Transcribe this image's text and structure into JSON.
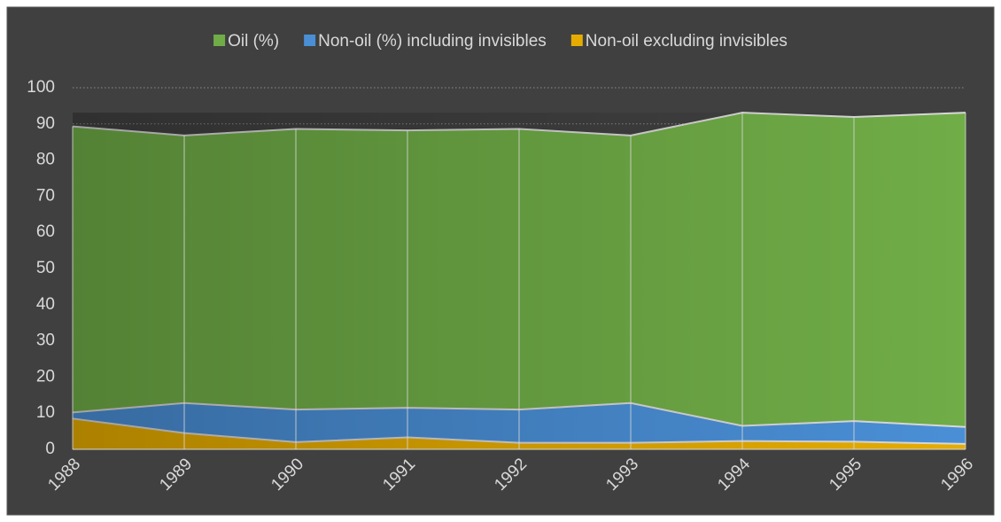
{
  "chart_data": {
    "type": "area",
    "categories": [
      "1988",
      "1989",
      "1990",
      "1991",
      "1992",
      "1993",
      "1994",
      "1995",
      "1996"
    ],
    "series": [
      {
        "name": "Oil (%)",
        "color": "#70ad47",
        "values": [
          89.3,
          86.8,
          88.6,
          88.2,
          88.6,
          86.8,
          93.1,
          91.9,
          93.1
        ]
      },
      {
        "name": "Non-oil (%) including invisibles",
        "color": "#4a8fd6",
        "values": [
          10.2,
          12.8,
          11.0,
          11.5,
          11.0,
          12.8,
          6.5,
          7.8,
          6.2
        ]
      },
      {
        "name": "Non-oil excluding invisibles",
        "color": "#e6ac00",
        "values": [
          8.5,
          4.5,
          2.0,
          3.3,
          1.8,
          1.8,
          2.3,
          2.1,
          1.5
        ]
      }
    ],
    "ylim": [
      0,
      100
    ],
    "yticks": [
      0,
      10,
      20,
      30,
      40,
      50,
      60,
      70,
      80,
      90,
      100
    ],
    "grid": true,
    "legend": "top"
  }
}
